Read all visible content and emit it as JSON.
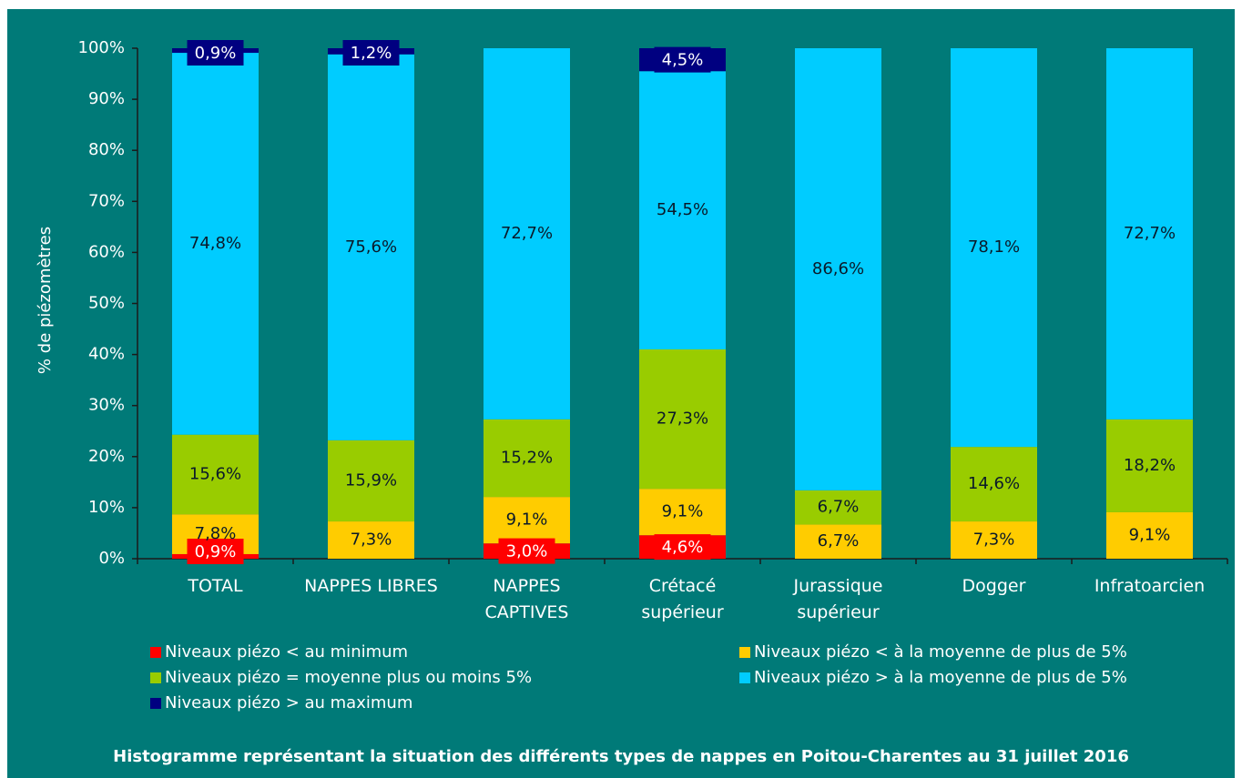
{
  "chart_data": {
    "type": "stacked_bar",
    "title": "Histogramme représentant la situation des différents types de nappes en Poitou-Charentes au 31 juillet 2016",
    "y_label": "% de piézomètres",
    "categories": [
      "TOTAL",
      "NAPPES LIBRES",
      "NAPPES\nCAPTIVES",
      "Crétacé\nsupérieur",
      "Jurassique\nsupérieur",
      "Dogger",
      "Infratoarcien"
    ],
    "series": [
      {
        "name": "Niveaux piézo < au minimum",
        "color": "#ff0000",
        "values": [
          0.9,
          0,
          3.0,
          4.6,
          0,
          0,
          0
        ],
        "value_labels": [
          "0,9%",
          null,
          "3,0%",
          "4,6%",
          null,
          null,
          null
        ]
      },
      {
        "name": "Niveaux piézo < à la moyenne de plus de 5%",
        "color": "#ffcc00",
        "values": [
          7.8,
          7.3,
          9.1,
          9.1,
          6.7,
          7.3,
          9.1
        ],
        "value_labels": [
          "7,8%",
          "7,3%",
          "9,1%",
          "9,1%",
          "6,7%",
          "7,3%",
          "9,1%"
        ]
      },
      {
        "name": "Niveaux piézo = moyenne plus ou moins 5%",
        "color": "#99cc00",
        "values": [
          15.6,
          15.9,
          15.2,
          27.3,
          6.7,
          14.6,
          18.2
        ],
        "value_labels": [
          "15,6%",
          "15,9%",
          "15,2%",
          "27,3%",
          "6,7%",
          "14,6%",
          "18,2%"
        ]
      },
      {
        "name": "Niveaux piézo > à la moyenne de plus de 5%",
        "color": "#00ccff",
        "values": [
          74.8,
          75.6,
          72.7,
          54.5,
          86.6,
          78.1,
          72.7
        ],
        "value_labels": [
          "74,8%",
          "75,6%",
          "72,7%",
          "54,5%",
          "86,6%",
          "78,1%",
          "72,7%"
        ]
      },
      {
        "name": "Niveaux piézo > au maximum",
        "color": "#000080",
        "values": [
          0.9,
          1.2,
          0,
          4.5,
          0,
          0,
          0
        ],
        "value_labels": [
          "0,9%",
          "1,2%",
          null,
          "4,5%",
          null,
          null,
          null
        ]
      }
    ],
    "ylim": [
      0,
      100
    ],
    "yticks": [
      {
        "value": 0,
        "label": "0%"
      },
      {
        "value": 10,
        "label": "10%"
      },
      {
        "value": 20,
        "label": "20%"
      },
      {
        "value": 30,
        "label": "30%"
      },
      {
        "value": 40,
        "label": "40%"
      },
      {
        "value": 50,
        "label": "50%"
      },
      {
        "value": 60,
        "label": "60%"
      },
      {
        "value": 70,
        "label": "70%"
      },
      {
        "value": 80,
        "label": "80%"
      },
      {
        "value": 90,
        "label": "90%"
      },
      {
        "value": 100,
        "label": "100%"
      }
    ]
  }
}
